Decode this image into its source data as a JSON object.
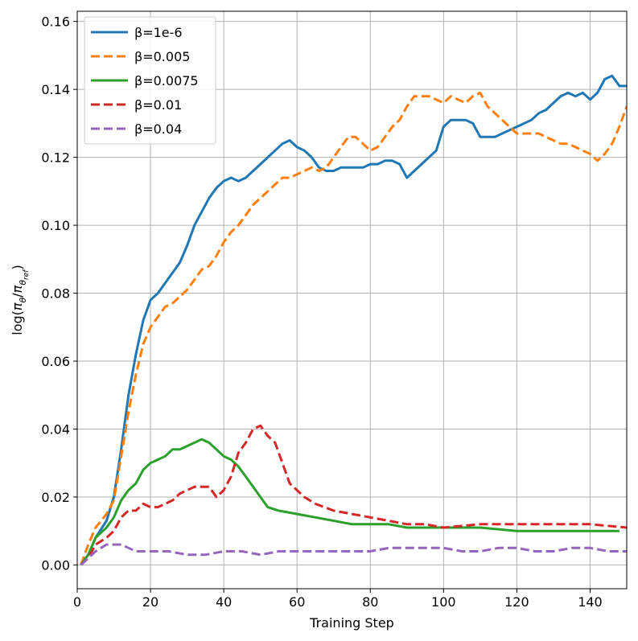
{
  "chart_data": {
    "type": "line",
    "xlabel": "Training Step",
    "ylabel": "log(πθ/πθref)",
    "xlim": [
      0,
      150
    ],
    "ylim": [
      -0.007,
      0.163
    ],
    "xticks": [
      0,
      20,
      40,
      60,
      80,
      100,
      120,
      140
    ],
    "yticks": [
      0.0,
      0.02,
      0.04,
      0.06,
      0.08,
      0.1,
      0.12,
      0.14,
      0.16
    ],
    "ytick_labels": [
      "0.00",
      "0.02",
      "0.04",
      "0.06",
      "0.08",
      "0.10",
      "0.12",
      "0.14",
      "0.16"
    ],
    "grid": true,
    "legend_position": "top-left",
    "series": [
      {
        "name": "β=1e-6",
        "color": "#1f77b4",
        "dash": "solid",
        "x": [
          1,
          3,
          5,
          8,
          10,
          12,
          14,
          16,
          18,
          20,
          22,
          24,
          26,
          28,
          30,
          32,
          34,
          36,
          38,
          40,
          42,
          44,
          46,
          48,
          50,
          52,
          54,
          56,
          58,
          60,
          62,
          64,
          66,
          68,
          70,
          72,
          74,
          76,
          78,
          80,
          82,
          84,
          86,
          88,
          90,
          92,
          94,
          96,
          98,
          100,
          102,
          104,
          106,
          108,
          110,
          112,
          114,
          116,
          118,
          120,
          122,
          124,
          126,
          128,
          130,
          132,
          134,
          136,
          138,
          140,
          142,
          144,
          146,
          148,
          150
        ],
        "y": [
          0.0,
          0.003,
          0.008,
          0.013,
          0.02,
          0.034,
          0.05,
          0.062,
          0.072,
          0.078,
          0.08,
          0.083,
          0.086,
          0.089,
          0.094,
          0.1,
          0.104,
          0.108,
          0.111,
          0.113,
          0.114,
          0.113,
          0.114,
          0.116,
          0.118,
          0.12,
          0.122,
          0.124,
          0.125,
          0.123,
          0.122,
          0.12,
          0.117,
          0.116,
          0.116,
          0.117,
          0.117,
          0.117,
          0.117,
          0.118,
          0.118,
          0.119,
          0.119,
          0.118,
          0.114,
          0.116,
          0.118,
          0.12,
          0.122,
          0.129,
          0.131,
          0.131,
          0.131,
          0.13,
          0.126,
          0.126,
          0.126,
          0.127,
          0.128,
          0.129,
          0.13,
          0.131,
          0.133,
          0.134,
          0.136,
          0.138,
          0.139,
          0.138,
          0.139,
          0.137,
          0.139,
          0.143,
          0.144,
          0.141,
          0.141
        ]
      },
      {
        "name": "β=0.005",
        "color": "#ff7f0e",
        "dash": "dashed",
        "x": [
          1,
          3,
          5,
          8,
          10,
          12,
          14,
          16,
          18,
          20,
          22,
          24,
          26,
          28,
          30,
          32,
          34,
          36,
          38,
          40,
          42,
          44,
          46,
          48,
          50,
          52,
          54,
          56,
          58,
          60,
          62,
          64,
          66,
          68,
          70,
          72,
          74,
          76,
          78,
          80,
          82,
          84,
          86,
          88,
          90,
          92,
          94,
          96,
          98,
          100,
          102,
          104,
          106,
          108,
          110,
          112,
          114,
          116,
          118,
          120,
          122,
          124,
          126,
          128,
          130,
          132,
          134,
          136,
          138,
          140,
          142,
          144,
          146,
          148,
          150
        ],
        "y": [
          0.0,
          0.006,
          0.011,
          0.015,
          0.019,
          0.032,
          0.045,
          0.056,
          0.065,
          0.07,
          0.073,
          0.076,
          0.077,
          0.079,
          0.081,
          0.084,
          0.087,
          0.088,
          0.091,
          0.095,
          0.098,
          0.1,
          0.103,
          0.106,
          0.108,
          0.11,
          0.112,
          0.114,
          0.114,
          0.115,
          0.116,
          0.117,
          0.116,
          0.117,
          0.12,
          0.123,
          0.126,
          0.126,
          0.124,
          0.122,
          0.123,
          0.126,
          0.129,
          0.131,
          0.135,
          0.138,
          0.138,
          0.138,
          0.137,
          0.136,
          0.138,
          0.137,
          0.136,
          0.138,
          0.139,
          0.135,
          0.133,
          0.131,
          0.129,
          0.127,
          0.127,
          0.127,
          0.127,
          0.126,
          0.125,
          0.124,
          0.124,
          0.123,
          0.122,
          0.121,
          0.119,
          0.121,
          0.124,
          0.129,
          0.135
        ]
      },
      {
        "name": "β=0.0075",
        "color": "#2ca02c",
        "dash": "solid",
        "x": [
          1,
          3,
          5,
          8,
          10,
          12,
          14,
          16,
          18,
          20,
          22,
          24,
          26,
          28,
          30,
          32,
          34,
          36,
          38,
          40,
          42,
          44,
          46,
          48,
          50,
          52,
          55,
          60,
          65,
          70,
          75,
          80,
          85,
          90,
          95,
          100,
          110,
          120,
          130,
          140,
          148
        ],
        "y": [
          0.0,
          0.003,
          0.008,
          0.011,
          0.014,
          0.019,
          0.022,
          0.024,
          0.028,
          0.03,
          0.031,
          0.032,
          0.034,
          0.034,
          0.035,
          0.036,
          0.037,
          0.036,
          0.034,
          0.032,
          0.031,
          0.029,
          0.026,
          0.023,
          0.02,
          0.017,
          0.016,
          0.015,
          0.014,
          0.013,
          0.012,
          0.012,
          0.012,
          0.011,
          0.011,
          0.011,
          0.011,
          0.01,
          0.01,
          0.01,
          0.01
        ]
      },
      {
        "name": "β=0.01",
        "color": "#d62728",
        "dash": "dashed",
        "x": [
          1,
          3,
          5,
          8,
          10,
          12,
          14,
          16,
          18,
          20,
          22,
          24,
          26,
          28,
          30,
          32,
          34,
          36,
          38,
          40,
          42,
          44,
          46,
          48,
          50,
          52,
          54,
          56,
          58,
          60,
          62,
          65,
          70,
          75,
          80,
          85,
          90,
          95,
          100,
          110,
          120,
          130,
          140,
          150
        ],
        "y": [
          0.0,
          0.002,
          0.006,
          0.008,
          0.01,
          0.014,
          0.016,
          0.016,
          0.018,
          0.017,
          0.017,
          0.018,
          0.019,
          0.021,
          0.022,
          0.023,
          0.023,
          0.023,
          0.02,
          0.022,
          0.026,
          0.033,
          0.036,
          0.04,
          0.041,
          0.038,
          0.036,
          0.03,
          0.024,
          0.022,
          0.02,
          0.018,
          0.016,
          0.015,
          0.014,
          0.013,
          0.012,
          0.012,
          0.011,
          0.012,
          0.012,
          0.012,
          0.012,
          0.011
        ]
      },
      {
        "name": "β=0.04",
        "color": "#9467bd",
        "dash": "dashed",
        "x": [
          1,
          3,
          5,
          8,
          10,
          12,
          14,
          16,
          18,
          20,
          25,
          30,
          35,
          40,
          45,
          50,
          55,
          60,
          65,
          70,
          75,
          80,
          85,
          90,
          95,
          100,
          105,
          110,
          115,
          120,
          125,
          130,
          135,
          140,
          145,
          150
        ],
        "y": [
          0.0,
          0.002,
          0.004,
          0.006,
          0.006,
          0.006,
          0.005,
          0.004,
          0.004,
          0.004,
          0.004,
          0.003,
          0.003,
          0.004,
          0.004,
          0.003,
          0.004,
          0.004,
          0.004,
          0.004,
          0.004,
          0.004,
          0.005,
          0.005,
          0.005,
          0.005,
          0.004,
          0.004,
          0.005,
          0.005,
          0.004,
          0.004,
          0.005,
          0.005,
          0.004,
          0.004
        ]
      }
    ]
  }
}
